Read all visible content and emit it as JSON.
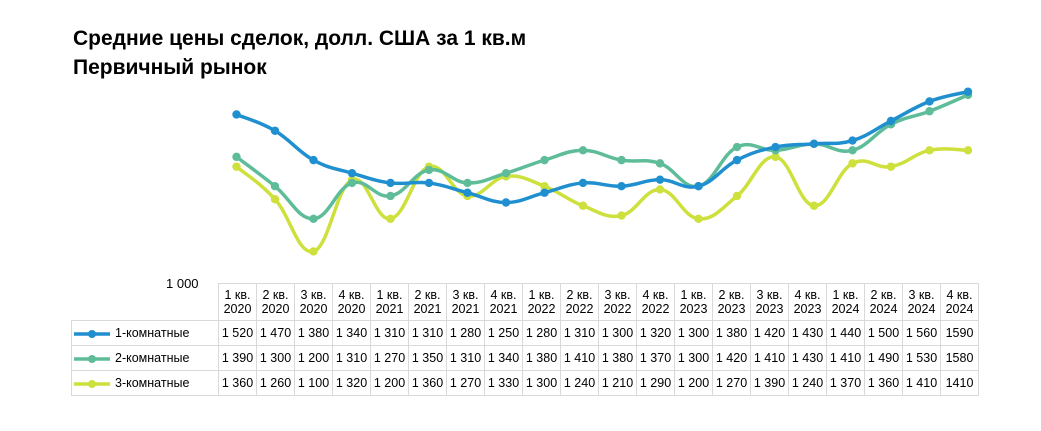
{
  "title": {
    "line1": "Средние цены сделок, долл. США за 1 кв.м",
    "line2": "Первичный рынок"
  },
  "chart_data": {
    "type": "line",
    "title": "Средние цены сделок, долл. США за 1 кв.м Первичный рынок",
    "ylim": [
      1000,
      1700
    ],
    "y_tick_labels": [
      "1 000"
    ],
    "grid": false,
    "categories": [
      [
        "1 кв.",
        "2020"
      ],
      [
        "2 кв.",
        "2020"
      ],
      [
        "3 кв.",
        "2020"
      ],
      [
        "4 кв.",
        "2020"
      ],
      [
        "1 кв.",
        "2021"
      ],
      [
        "2 кв.",
        "2021"
      ],
      [
        "3 кв.",
        "2021"
      ],
      [
        "4 кв.",
        "2021"
      ],
      [
        "1 кв.",
        "2022"
      ],
      [
        "2 кв.",
        "2022"
      ],
      [
        "3 кв.",
        "2022"
      ],
      [
        "4 кв.",
        "2022"
      ],
      [
        "1 кв.",
        "2023"
      ],
      [
        "2 кв.",
        "2023"
      ],
      [
        "3 кв.",
        "2023"
      ],
      [
        "4 кв.",
        "2023"
      ],
      [
        "1 кв.",
        "2024"
      ],
      [
        "2 кв.",
        "2024"
      ],
      [
        "3 кв.",
        "2024"
      ],
      [
        "4 кв.",
        "2024"
      ]
    ],
    "series": [
      {
        "name": "1-комнатные",
        "color": "#1f8fd0",
        "values": [
          1520,
          1470,
          1380,
          1340,
          1310,
          1310,
          1280,
          1250,
          1280,
          1310,
          1300,
          1320,
          1300,
          1380,
          1420,
          1430,
          1440,
          1500,
          1560,
          1590
        ],
        "value_labels": [
          "1 520",
          "1 470",
          "1 380",
          "1 340",
          "1 310",
          "1 310",
          "1 280",
          "1 250",
          "1 280",
          "1 310",
          "1 300",
          "1 320",
          "1 300",
          "1 380",
          "1 420",
          "1 430",
          "1 440",
          "1 500",
          "1 560",
          "1590"
        ]
      },
      {
        "name": "2-комнатные",
        "color": "#5ebd98",
        "values": [
          1390,
          1300,
          1200,
          1310,
          1270,
          1350,
          1310,
          1340,
          1380,
          1410,
          1380,
          1370,
          1300,
          1420,
          1410,
          1430,
          1410,
          1490,
          1530,
          1580
        ],
        "value_labels": [
          "1 390",
          "1 300",
          "1 200",
          "1 310",
          "1 270",
          "1 350",
          "1 310",
          "1 340",
          "1 380",
          "1 410",
          "1 380",
          "1 370",
          "1 300",
          "1 420",
          "1 410",
          "1 430",
          "1 410",
          "1 490",
          "1 530",
          "1580"
        ]
      },
      {
        "name": "3-комнатные",
        "color": "#cde03b",
        "values": [
          1360,
          1260,
          1100,
          1320,
          1200,
          1360,
          1270,
          1330,
          1300,
          1240,
          1210,
          1290,
          1200,
          1270,
          1390,
          1240,
          1370,
          1360,
          1410,
          1410
        ],
        "value_labels": [
          "1 360",
          "1 260",
          "1 100",
          "1 320",
          "1 200",
          "1 360",
          "1 270",
          "1 330",
          "1 300",
          "1 240",
          "1 210",
          "1 290",
          "1 200",
          "1 270",
          "1 390",
          "1 240",
          "1 370",
          "1 360",
          "1 410",
          "1410"
        ]
      }
    ]
  }
}
